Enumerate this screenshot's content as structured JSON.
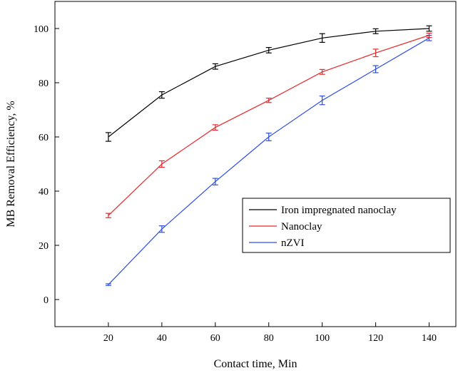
{
  "chart_data": {
    "type": "line",
    "title": "",
    "xlabel": "Contact time, Min",
    "ylabel": "MB Removal Efficiency, %",
    "x": [
      20,
      40,
      60,
      80,
      100,
      120,
      140
    ],
    "xlim": [
      0,
      150
    ],
    "ylim": [
      -10,
      110
    ],
    "xticks": [
      "20",
      "40",
      "60",
      "80",
      "100",
      "120",
      "140"
    ],
    "yticks": [
      "0",
      "20",
      "40",
      "60",
      "80",
      "100"
    ],
    "grid": false,
    "legend_position": "center-right",
    "series": [
      {
        "name": "Iron impregnated nanoclay",
        "color": "#000000",
        "values": [
          60,
          75.5,
          86,
          92,
          96.5,
          99,
          100
        ],
        "errors": [
          1.6,
          1.2,
          1.0,
          1.0,
          1.6,
          0.9,
          1.0
        ]
      },
      {
        "name": "Nanoclay",
        "color": "#e8282c",
        "values": [
          31,
          50,
          63.5,
          73.5,
          84,
          91,
          97.5
        ],
        "errors": [
          0.8,
          1.2,
          1.0,
          0.8,
          0.9,
          1.4,
          0.8
        ]
      },
      {
        "name": "nZVI",
        "color": "#2e4de3",
        "values": [
          5.5,
          26,
          43.5,
          60,
          73.5,
          85,
          96.5
        ],
        "errors": [
          0.3,
          1.2,
          1.2,
          1.4,
          1.6,
          1.3,
          1.0
        ]
      }
    ]
  }
}
